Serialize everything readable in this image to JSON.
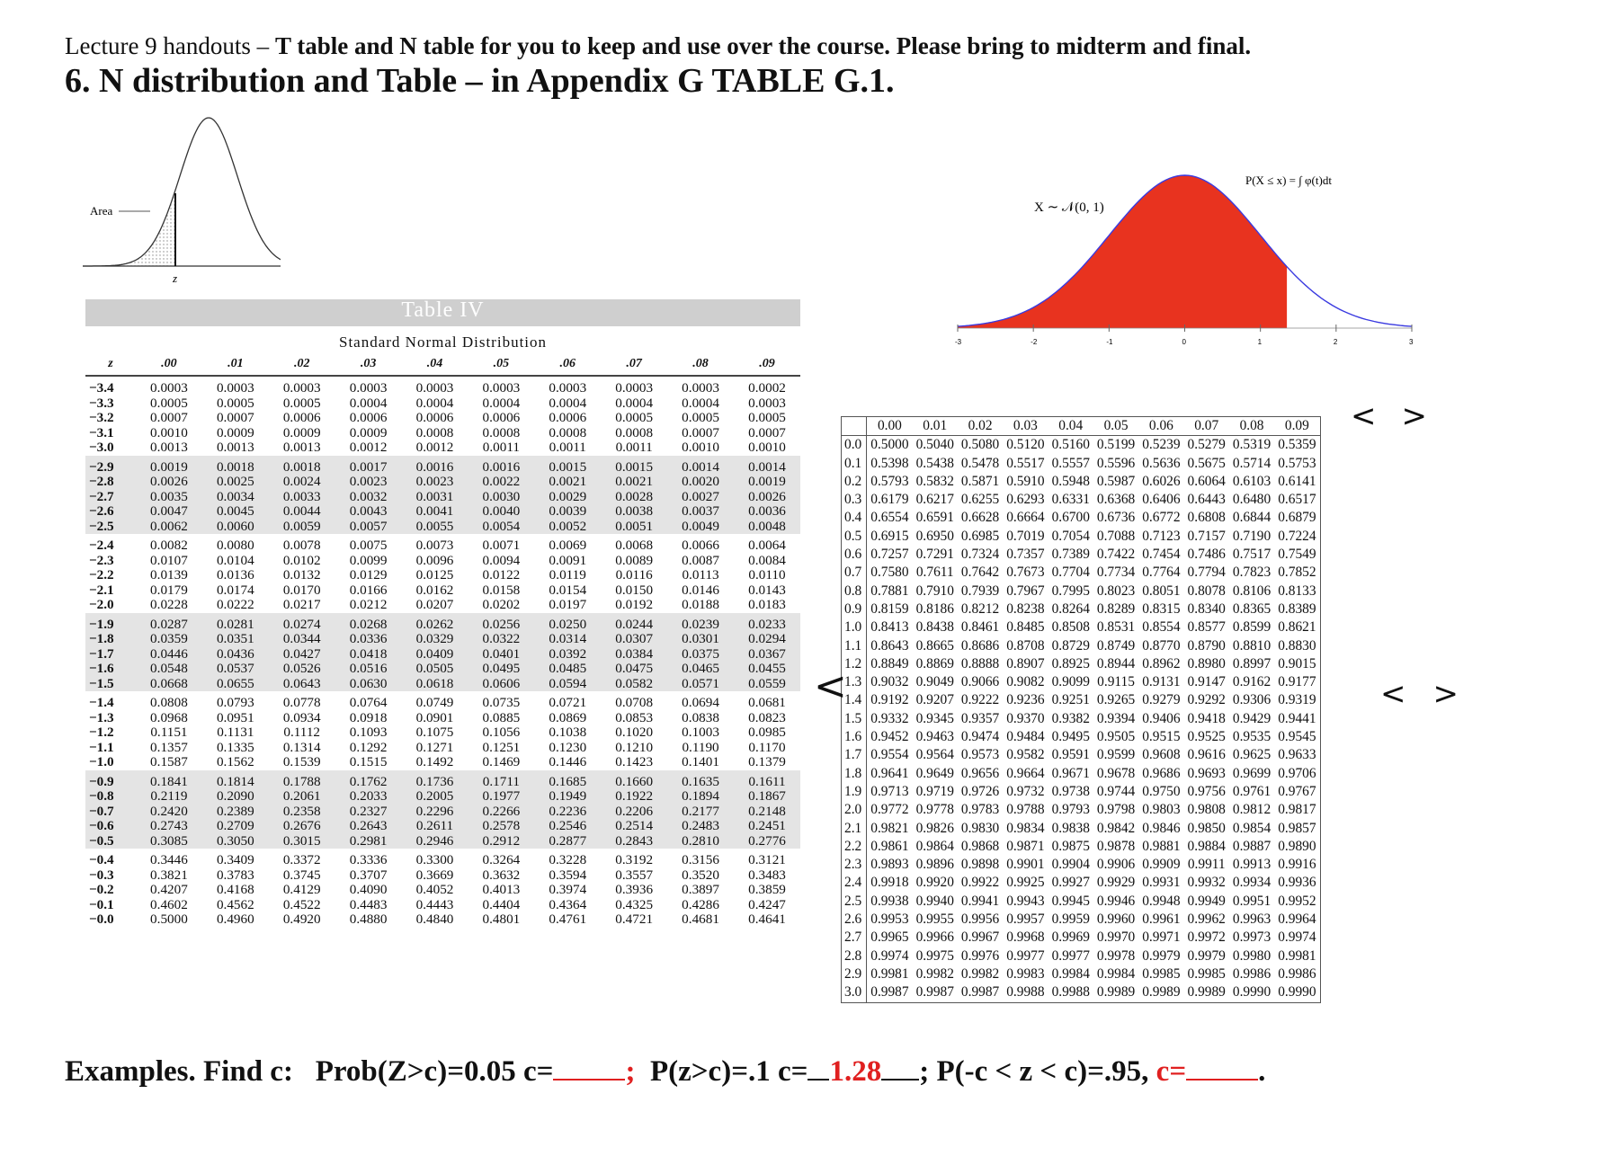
{
  "heading": {
    "line1_prefix": "Lecture 9 handouts – ",
    "line1_bold": "T table and N table for you to keep and use over the course. Please bring to midterm and final.",
    "line2": "6. N distribution and Table – in Appendix G TABLE G.1."
  },
  "small_bell": {
    "area_label": "Area",
    "z_label": "z"
  },
  "table4": {
    "title": "Table IV",
    "subtitle": "Standard Normal Distribution",
    "header": [
      "z",
      ".00",
      ".01",
      ".02",
      ".03",
      ".04",
      ".05",
      ".06",
      ".07",
      ".08",
      ".09"
    ],
    "rows": [
      [
        "−3.4",
        "0.0003",
        "0.0003",
        "0.0003",
        "0.0003",
        "0.0003",
        "0.0003",
        "0.0003",
        "0.0003",
        "0.0003",
        "0.0002"
      ],
      [
        "−3.3",
        "0.0005",
        "0.0005",
        "0.0005",
        "0.0004",
        "0.0004",
        "0.0004",
        "0.0004",
        "0.0004",
        "0.0004",
        "0.0003"
      ],
      [
        "−3.2",
        "0.0007",
        "0.0007",
        "0.0006",
        "0.0006",
        "0.0006",
        "0.0006",
        "0.0006",
        "0.0005",
        "0.0005",
        "0.0005"
      ],
      [
        "−3.1",
        "0.0010",
        "0.0009",
        "0.0009",
        "0.0009",
        "0.0008",
        "0.0008",
        "0.0008",
        "0.0008",
        "0.0007",
        "0.0007"
      ],
      [
        "−3.0",
        "0.0013",
        "0.0013",
        "0.0013",
        "0.0012",
        "0.0012",
        "0.0011",
        "0.0011",
        "0.0011",
        "0.0010",
        "0.0010"
      ],
      [
        "−2.9",
        "0.0019",
        "0.0018",
        "0.0018",
        "0.0017",
        "0.0016",
        "0.0016",
        "0.0015",
        "0.0015",
        "0.0014",
        "0.0014"
      ],
      [
        "−2.8",
        "0.0026",
        "0.0025",
        "0.0024",
        "0.0023",
        "0.0023",
        "0.0022",
        "0.0021",
        "0.0021",
        "0.0020",
        "0.0019"
      ],
      [
        "−2.7",
        "0.0035",
        "0.0034",
        "0.0033",
        "0.0032",
        "0.0031",
        "0.0030",
        "0.0029",
        "0.0028",
        "0.0027",
        "0.0026"
      ],
      [
        "−2.6",
        "0.0047",
        "0.0045",
        "0.0044",
        "0.0043",
        "0.0041",
        "0.0040",
        "0.0039",
        "0.0038",
        "0.0037",
        "0.0036"
      ],
      [
        "−2.5",
        "0.0062",
        "0.0060",
        "0.0059",
        "0.0057",
        "0.0055",
        "0.0054",
        "0.0052",
        "0.0051",
        "0.0049",
        "0.0048"
      ],
      [
        "−2.4",
        "0.0082",
        "0.0080",
        "0.0078",
        "0.0075",
        "0.0073",
        "0.0071",
        "0.0069",
        "0.0068",
        "0.0066",
        "0.0064"
      ],
      [
        "−2.3",
        "0.0107",
        "0.0104",
        "0.0102",
        "0.0099",
        "0.0096",
        "0.0094",
        "0.0091",
        "0.0089",
        "0.0087",
        "0.0084"
      ],
      [
        "−2.2",
        "0.0139",
        "0.0136",
        "0.0132",
        "0.0129",
        "0.0125",
        "0.0122",
        "0.0119",
        "0.0116",
        "0.0113",
        "0.0110"
      ],
      [
        "−2.1",
        "0.0179",
        "0.0174",
        "0.0170",
        "0.0166",
        "0.0162",
        "0.0158",
        "0.0154",
        "0.0150",
        "0.0146",
        "0.0143"
      ],
      [
        "−2.0",
        "0.0228",
        "0.0222",
        "0.0217",
        "0.0212",
        "0.0207",
        "0.0202",
        "0.0197",
        "0.0192",
        "0.0188",
        "0.0183"
      ],
      [
        "−1.9",
        "0.0287",
        "0.0281",
        "0.0274",
        "0.0268",
        "0.0262",
        "0.0256",
        "0.0250",
        "0.0244",
        "0.0239",
        "0.0233"
      ],
      [
        "−1.8",
        "0.0359",
        "0.0351",
        "0.0344",
        "0.0336",
        "0.0329",
        "0.0322",
        "0.0314",
        "0.0307",
        "0.0301",
        "0.0294"
      ],
      [
        "−1.7",
        "0.0446",
        "0.0436",
        "0.0427",
        "0.0418",
        "0.0409",
        "0.0401",
        "0.0392",
        "0.0384",
        "0.0375",
        "0.0367"
      ],
      [
        "−1.6",
        "0.0548",
        "0.0537",
        "0.0526",
        "0.0516",
        "0.0505",
        "0.0495",
        "0.0485",
        "0.0475",
        "0.0465",
        "0.0455"
      ],
      [
        "−1.5",
        "0.0668",
        "0.0655",
        "0.0643",
        "0.0630",
        "0.0618",
        "0.0606",
        "0.0594",
        "0.0582",
        "0.0571",
        "0.0559"
      ],
      [
        "−1.4",
        "0.0808",
        "0.0793",
        "0.0778",
        "0.0764",
        "0.0749",
        "0.0735",
        "0.0721",
        "0.0708",
        "0.0694",
        "0.0681"
      ],
      [
        "−1.3",
        "0.0968",
        "0.0951",
        "0.0934",
        "0.0918",
        "0.0901",
        "0.0885",
        "0.0869",
        "0.0853",
        "0.0838",
        "0.0823"
      ],
      [
        "−1.2",
        "0.1151",
        "0.1131",
        "0.1112",
        "0.1093",
        "0.1075",
        "0.1056",
        "0.1038",
        "0.1020",
        "0.1003",
        "0.0985"
      ],
      [
        "−1.1",
        "0.1357",
        "0.1335",
        "0.1314",
        "0.1292",
        "0.1271",
        "0.1251",
        "0.1230",
        "0.1210",
        "0.1190",
        "0.1170"
      ],
      [
        "−1.0",
        "0.1587",
        "0.1562",
        "0.1539",
        "0.1515",
        "0.1492",
        "0.1469",
        "0.1446",
        "0.1423",
        "0.1401",
        "0.1379"
      ],
      [
        "−0.9",
        "0.1841",
        "0.1814",
        "0.1788",
        "0.1762",
        "0.1736",
        "0.1711",
        "0.1685",
        "0.1660",
        "0.1635",
        "0.1611"
      ],
      [
        "−0.8",
        "0.2119",
        "0.2090",
        "0.2061",
        "0.2033",
        "0.2005",
        "0.1977",
        "0.1949",
        "0.1922",
        "0.1894",
        "0.1867"
      ],
      [
        "−0.7",
        "0.2420",
        "0.2389",
        "0.2358",
        "0.2327",
        "0.2296",
        "0.2266",
        "0.2236",
        "0.2206",
        "0.2177",
        "0.2148"
      ],
      [
        "−0.6",
        "0.2743",
        "0.2709",
        "0.2676",
        "0.2643",
        "0.2611",
        "0.2578",
        "0.2546",
        "0.2514",
        "0.2483",
        "0.2451"
      ],
      [
        "−0.5",
        "0.3085",
        "0.3050",
        "0.3015",
        "0.2981",
        "0.2946",
        "0.2912",
        "0.2877",
        "0.2843",
        "0.2810",
        "0.2776"
      ],
      [
        "−0.4",
        "0.3446",
        "0.3409",
        "0.3372",
        "0.3336",
        "0.3300",
        "0.3264",
        "0.3228",
        "0.3192",
        "0.3156",
        "0.3121"
      ],
      [
        "−0.3",
        "0.3821",
        "0.3783",
        "0.3745",
        "0.3707",
        "0.3669",
        "0.3632",
        "0.3594",
        "0.3557",
        "0.3520",
        "0.3483"
      ],
      [
        "−0.2",
        "0.4207",
        "0.4168",
        "0.4129",
        "0.4090",
        "0.4052",
        "0.4013",
        "0.3974",
        "0.3936",
        "0.3897",
        "0.3859"
      ],
      [
        "−0.1",
        "0.4602",
        "0.4562",
        "0.4522",
        "0.4483",
        "0.4443",
        "0.4404",
        "0.4364",
        "0.4325",
        "0.4286",
        "0.4247"
      ],
      [
        "−0.0",
        "0.5000",
        "0.4960",
        "0.4920",
        "0.4880",
        "0.4840",
        "0.4801",
        "0.4761",
        "0.4721",
        "0.4681",
        "0.4641"
      ]
    ]
  },
  "red_bell": {
    "dist_label": "X ∼ 𝒩(0, 1)",
    "cdf_label": "P(X ≤ x) = ∫ φ(t)dt",
    "color": "#e8331f",
    "ticks": [
      "-3",
      "-2",
      "-1",
      "0",
      "1",
      "2",
      "3"
    ]
  },
  "ntable": {
    "header": [
      "0.00",
      "0.01",
      "0.02",
      "0.03",
      "0.04",
      "0.05",
      "0.06",
      "0.07",
      "0.08",
      "0.09"
    ],
    "rows": [
      [
        "0.0",
        "0.5000",
        "0.5040",
        "0.5080",
        "0.5120",
        "0.5160",
        "0.5199",
        "0.5239",
        "0.5279",
        "0.5319",
        "0.5359"
      ],
      [
        "0.1",
        "0.5398",
        "0.5438",
        "0.5478",
        "0.5517",
        "0.5557",
        "0.5596",
        "0.5636",
        "0.5675",
        "0.5714",
        "0.5753"
      ],
      [
        "0.2",
        "0.5793",
        "0.5832",
        "0.5871",
        "0.5910",
        "0.5948",
        "0.5987",
        "0.6026",
        "0.6064",
        "0.6103",
        "0.6141"
      ],
      [
        "0.3",
        "0.6179",
        "0.6217",
        "0.6255",
        "0.6293",
        "0.6331",
        "0.6368",
        "0.6406",
        "0.6443",
        "0.6480",
        "0.6517"
      ],
      [
        "0.4",
        "0.6554",
        "0.6591",
        "0.6628",
        "0.6664",
        "0.6700",
        "0.6736",
        "0.6772",
        "0.6808",
        "0.6844",
        "0.6879"
      ],
      [
        "0.5",
        "0.6915",
        "0.6950",
        "0.6985",
        "0.7019",
        "0.7054",
        "0.7088",
        "0.7123",
        "0.7157",
        "0.7190",
        "0.7224"
      ],
      [
        "0.6",
        "0.7257",
        "0.7291",
        "0.7324",
        "0.7357",
        "0.7389",
        "0.7422",
        "0.7454",
        "0.7486",
        "0.7517",
        "0.7549"
      ],
      [
        "0.7",
        "0.7580",
        "0.7611",
        "0.7642",
        "0.7673",
        "0.7704",
        "0.7734",
        "0.7764",
        "0.7794",
        "0.7823",
        "0.7852"
      ],
      [
        "0.8",
        "0.7881",
        "0.7910",
        "0.7939",
        "0.7967",
        "0.7995",
        "0.8023",
        "0.8051",
        "0.8078",
        "0.8106",
        "0.8133"
      ],
      [
        "0.9",
        "0.8159",
        "0.8186",
        "0.8212",
        "0.8238",
        "0.8264",
        "0.8289",
        "0.8315",
        "0.8340",
        "0.8365",
        "0.8389"
      ],
      [
        "1.0",
        "0.8413",
        "0.8438",
        "0.8461",
        "0.8485",
        "0.8508",
        "0.8531",
        "0.8554",
        "0.8577",
        "0.8599",
        "0.8621"
      ],
      [
        "1.1",
        "0.8643",
        "0.8665",
        "0.8686",
        "0.8708",
        "0.8729",
        "0.8749",
        "0.8770",
        "0.8790",
        "0.8810",
        "0.8830"
      ],
      [
        "1.2",
        "0.8849",
        "0.8869",
        "0.8888",
        "0.8907",
        "0.8925",
        "0.8944",
        "0.8962",
        "0.8980",
        "0.8997",
        "0.9015"
      ],
      [
        "1.3",
        "0.9032",
        "0.9049",
        "0.9066",
        "0.9082",
        "0.9099",
        "0.9115",
        "0.9131",
        "0.9147",
        "0.9162",
        "0.9177"
      ],
      [
        "1.4",
        "0.9192",
        "0.9207",
        "0.9222",
        "0.9236",
        "0.9251",
        "0.9265",
        "0.9279",
        "0.9292",
        "0.9306",
        "0.9319"
      ],
      [
        "1.5",
        "0.9332",
        "0.9345",
        "0.9357",
        "0.9370",
        "0.9382",
        "0.9394",
        "0.9406",
        "0.9418",
        "0.9429",
        "0.9441"
      ],
      [
        "1.6",
        "0.9452",
        "0.9463",
        "0.9474",
        "0.9484",
        "0.9495",
        "0.9505",
        "0.9515",
        "0.9525",
        "0.9535",
        "0.9545"
      ],
      [
        "1.7",
        "0.9554",
        "0.9564",
        "0.9573",
        "0.9582",
        "0.9591",
        "0.9599",
        "0.9608",
        "0.9616",
        "0.9625",
        "0.9633"
      ],
      [
        "1.8",
        "0.9641",
        "0.9649",
        "0.9656",
        "0.9664",
        "0.9671",
        "0.9678",
        "0.9686",
        "0.9693",
        "0.9699",
        "0.9706"
      ],
      [
        "1.9",
        "0.9713",
        "0.9719",
        "0.9726",
        "0.9732",
        "0.9738",
        "0.9744",
        "0.9750",
        "0.9756",
        "0.9761",
        "0.9767"
      ],
      [
        "2.0",
        "0.9772",
        "0.9778",
        "0.9783",
        "0.9788",
        "0.9793",
        "0.9798",
        "0.9803",
        "0.9808",
        "0.9812",
        "0.9817"
      ],
      [
        "2.1",
        "0.9821",
        "0.9826",
        "0.9830",
        "0.9834",
        "0.9838",
        "0.9842",
        "0.9846",
        "0.9850",
        "0.9854",
        "0.9857"
      ],
      [
        "2.2",
        "0.9861",
        "0.9864",
        "0.9868",
        "0.9871",
        "0.9875",
        "0.9878",
        "0.9881",
        "0.9884",
        "0.9887",
        "0.9890"
      ],
      [
        "2.3",
        "0.9893",
        "0.9896",
        "0.9898",
        "0.9901",
        "0.9904",
        "0.9906",
        "0.9909",
        "0.9911",
        "0.9913",
        "0.9916"
      ],
      [
        "2.4",
        "0.9918",
        "0.9920",
        "0.9922",
        "0.9925",
        "0.9927",
        "0.9929",
        "0.9931",
        "0.9932",
        "0.9934",
        "0.9936"
      ],
      [
        "2.5",
        "0.9938",
        "0.9940",
        "0.9941",
        "0.9943",
        "0.9945",
        "0.9946",
        "0.9948",
        "0.9949",
        "0.9951",
        "0.9952"
      ],
      [
        "2.6",
        "0.9953",
        "0.9955",
        "0.9956",
        "0.9957",
        "0.9959",
        "0.9960",
        "0.9961",
        "0.9962",
        "0.9963",
        "0.9964"
      ],
      [
        "2.7",
        "0.9965",
        "0.9966",
        "0.9967",
        "0.9968",
        "0.9969",
        "0.9970",
        "0.9971",
        "0.9972",
        "0.9973",
        "0.9974"
      ],
      [
        "2.8",
        "0.9974",
        "0.9975",
        "0.9976",
        "0.9977",
        "0.9977",
        "0.9978",
        "0.9979",
        "0.9979",
        "0.9980",
        "0.9981"
      ],
      [
        "2.9",
        "0.9981",
        "0.9982",
        "0.9982",
        "0.9983",
        "0.9984",
        "0.9984",
        "0.9985",
        "0.9985",
        "0.9986",
        "0.9986"
      ],
      [
        "3.0",
        "0.9987",
        "0.9987",
        "0.9987",
        "0.9988",
        "0.9988",
        "0.9989",
        "0.9989",
        "0.9989",
        "0.9990",
        "0.9990"
      ]
    ]
  },
  "annotations": {
    "left_mark": "<",
    "right_mark": ">",
    "row_mark": "<",
    "row_mark2": ">"
  },
  "examples": {
    "label": "Examples. Find c:",
    "q1": "Prob(Z>c)=0.05   c=",
    "sep1": ";",
    "q2": "P(z>c)=.1  c=",
    "q2_answer": "1.28",
    "q3_sep": "; P(-c < z < c)=.95, ",
    "q3_c": "c=",
    "period": "."
  }
}
